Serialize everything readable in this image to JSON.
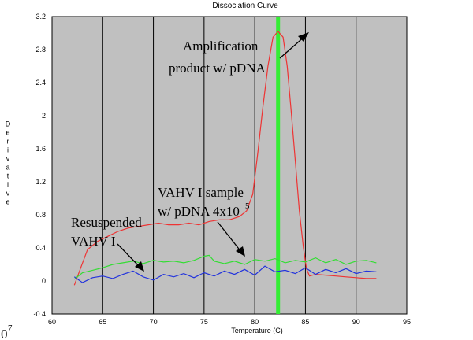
{
  "chart_data": {
    "type": "line",
    "title": "Dissociation Curve",
    "xlabel": "Temperature (C)",
    "ylabel": "Derivative",
    "xlim": [
      60,
      95
    ],
    "ylim": [
      -0.4,
      3.2
    ],
    "x_ticks": [
      "60",
      "65",
      "70",
      "75",
      "80",
      "85",
      "90",
      "95"
    ],
    "y_ticks": [
      "-0.4",
      "0",
      "0.4",
      "0.8",
      "1.2",
      "1.6",
      "2",
      "2.4",
      "2.8",
      "3.2"
    ],
    "grid": "vertical",
    "marker_line": {
      "x": 82.3,
      "color": "#33ee33"
    },
    "series": [
      {
        "name": "Amplification product w/ pDNA",
        "color": "#ee3333",
        "x": [
          62.2,
          62.8,
          63.5,
          64.5,
          65.5,
          66.5,
          67.5,
          68.5,
          69.5,
          70.5,
          71.5,
          72.5,
          73.5,
          74.5,
          75.5,
          76.5,
          77.5,
          78.5,
          79.2,
          79.8,
          80.3,
          80.8,
          81.3,
          81.8,
          82.3,
          82.8,
          83.2,
          83.6,
          84.0,
          84.4,
          84.8,
          85.1,
          85.4,
          86.0,
          87.0,
          88.0,
          89.0,
          90.0,
          91.0,
          92.0
        ],
        "y": [
          -0.05,
          0.15,
          0.38,
          0.48,
          0.54,
          0.6,
          0.64,
          0.66,
          0.68,
          0.7,
          0.68,
          0.68,
          0.7,
          0.68,
          0.72,
          0.74,
          0.74,
          0.78,
          0.85,
          1.05,
          1.55,
          2.1,
          2.6,
          2.95,
          3.02,
          2.95,
          2.6,
          2.05,
          1.45,
          0.85,
          0.4,
          0.15,
          0.06,
          0.08,
          0.07,
          0.06,
          0.05,
          0.04,
          0.03,
          0.03
        ]
      },
      {
        "name": "VAHV I sample w/ pDNA 4x10^5",
        "color": "#33dd33",
        "x": [
          62.2,
          63.0,
          64.0,
          65.0,
          66.0,
          67.0,
          68.0,
          69.0,
          70.0,
          71.0,
          72.0,
          73.0,
          74.0,
          75.0,
          75.5,
          76.0,
          77.0,
          78.0,
          79.0,
          80.0,
          81.0,
          82.0,
          83.0,
          84.0,
          85.0,
          86.0,
          87.0,
          88.0,
          89.0,
          90.0,
          91.0,
          92.0
        ],
        "y": [
          0.02,
          0.1,
          0.13,
          0.16,
          0.2,
          0.22,
          0.24,
          0.21,
          0.25,
          0.23,
          0.24,
          0.22,
          0.25,
          0.3,
          0.31,
          0.24,
          0.21,
          0.24,
          0.2,
          0.26,
          0.24,
          0.27,
          0.22,
          0.25,
          0.23,
          0.28,
          0.22,
          0.26,
          0.2,
          0.24,
          0.25,
          0.22
        ]
      },
      {
        "name": "Resuspended VAHV I",
        "color": "#2233dd",
        "x": [
          62.2,
          63.0,
          64.0,
          65.0,
          66.0,
          67.0,
          68.0,
          69.0,
          70.0,
          71.0,
          72.0,
          73.0,
          74.0,
          75.0,
          76.0,
          77.0,
          78.0,
          79.0,
          80.0,
          81.0,
          82.0,
          83.0,
          84.0,
          85.0,
          86.0,
          87.0,
          88.0,
          89.0,
          90.0,
          91.0,
          92.0
        ],
        "y": [
          0.05,
          -0.02,
          0.04,
          0.06,
          0.03,
          0.08,
          0.12,
          0.05,
          0.01,
          0.08,
          0.05,
          0.09,
          0.04,
          0.1,
          0.06,
          0.12,
          0.08,
          0.14,
          0.07,
          0.18,
          0.11,
          0.13,
          0.09,
          0.16,
          0.08,
          0.14,
          0.1,
          0.15,
          0.09,
          0.12,
          0.11
        ]
      }
    ],
    "annotations": [
      {
        "lines": [
          "Amplification",
          "product w/ pDNA"
        ]
      },
      {
        "lines": [
          "VAHV I sample",
          "w/ pDNA 4x10"
        ],
        "superscript": "5"
      },
      {
        "lines": [
          "Resuspended",
          "VAHV I"
        ]
      }
    ],
    "corner_fragment": {
      "text": "0",
      "superscript": "7"
    }
  }
}
